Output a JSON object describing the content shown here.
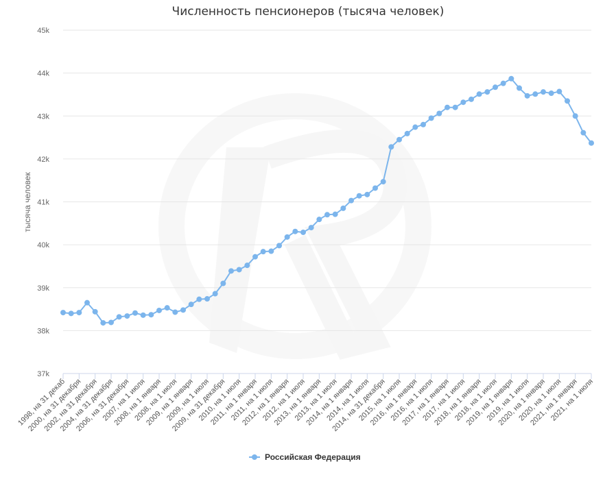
{
  "chart_data": {
    "type": "line",
    "title": "Численность пенсионеров (тысяча человек)",
    "xlabel": "",
    "ylabel": "тысяча человек",
    "ylim": [
      37000,
      45000
    ],
    "y_ticks": [
      37000,
      38000,
      39000,
      40000,
      41000,
      42000,
      43000,
      44000,
      45000
    ],
    "y_tick_labels": [
      "37k",
      "38k",
      "39k",
      "40k",
      "41k",
      "42k",
      "43k",
      "44k",
      "45k"
    ],
    "grid": true,
    "legend_position": "bottom-center",
    "x_tick_labels": [
      "1998, на 31 декаб",
      "2000, на 31 декабря",
      "2002, на 31 декабря",
      "2004, на 31 декабря",
      "2006, на 31 декабря",
      "2007, на 1 июля",
      "2008, на 1 января",
      "2008, на 1 июля",
      "2009, на 1 января",
      "2009, на 1 июля",
      "2009, на 31 декабря",
      "2010, на 1 июля",
      "2011, на 1 января",
      "2011, на 1 июля",
      "2012, на 1 января",
      "2012, на 1 июля",
      "2013, на 1 января",
      "2013, на 1 июля",
      "2014, на 1 января",
      "2014, на 1 июля",
      "2014, на 31 декабря",
      "2015, на 1 июля",
      "2016, на 1 января",
      "2016, на 1 июля",
      "2017, на 1 января",
      "2017, на 1 июля",
      "2018, на 1 января",
      "2018, на 1 июля",
      "2019, на 1 января",
      "2019, на 1 июля",
      "2020, на 1 января",
      "2020, на 1 июля",
      "2021, на 1 января",
      "2021, на 1 июля"
    ],
    "series": [
      {
        "name": "Российская Федерация",
        "color": "#7cb5ec",
        "values": [
          38420,
          38400,
          38420,
          38650,
          38440,
          38180,
          38190,
          38320,
          38340,
          38410,
          38360,
          38370,
          38470,
          38530,
          38430,
          38480,
          38610,
          38730,
          38740,
          38860,
          39100,
          39390,
          39420,
          39520,
          39720,
          39840,
          39850,
          39980,
          40180,
          40310,
          40290,
          40400,
          40590,
          40700,
          40710,
          40850,
          41030,
          41140,
          41170,
          41320,
          41470,
          42280,
          42450,
          42590,
          42740,
          42800,
          42950,
          43060,
          43200,
          43200,
          43320,
          43390,
          43510,
          43560,
          43670,
          43760,
          43870,
          43650,
          43470,
          43510,
          43560,
          43530,
          43570,
          43350,
          43000,
          42610,
          42370
        ]
      }
    ]
  },
  "legend": {
    "label": "Российская Федерация",
    "color": "#7cb5ec"
  }
}
